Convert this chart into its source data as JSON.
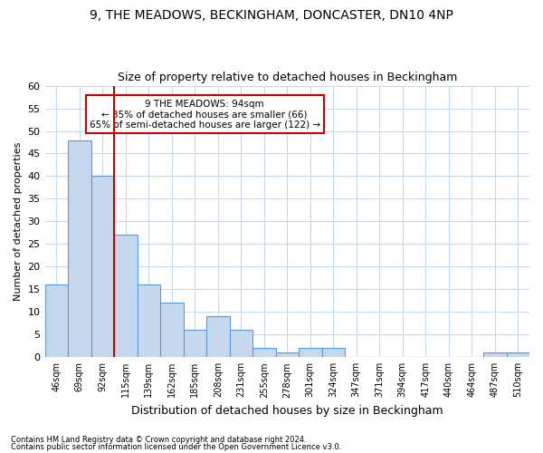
{
  "title1": "9, THE MEADOWS, BECKINGHAM, DONCASTER, DN10 4NP",
  "title2": "Size of property relative to detached houses in Beckingham",
  "xlabel": "Distribution of detached houses by size in Beckingham",
  "ylabel": "Number of detached properties",
  "footnote1": "Contains HM Land Registry data © Crown copyright and database right 2024.",
  "footnote2": "Contains public sector information licensed under the Open Government Licence v3.0.",
  "categories": [
    "46sqm",
    "69sqm",
    "92sqm",
    "115sqm",
    "139sqm",
    "162sqm",
    "185sqm",
    "208sqm",
    "231sqm",
    "255sqm",
    "278sqm",
    "301sqm",
    "324sqm",
    "347sqm",
    "371sqm",
    "394sqm",
    "417sqm",
    "440sqm",
    "464sqm",
    "487sqm",
    "510sqm"
  ],
  "values": [
    16,
    48,
    40,
    27,
    16,
    12,
    6,
    9,
    6,
    2,
    1,
    2,
    2,
    0,
    0,
    0,
    0,
    0,
    0,
    1,
    1
  ],
  "bar_color": "#c5d8ed",
  "bar_edge_color": "#5b9bd5",
  "grid_color": "#c5d8ed",
  "annotation_box_color": "#cc0000",
  "vline_color": "#cc0000",
  "vline_x": 2.5,
  "annotation_text_line1": "9 THE MEADOWS: 94sqm",
  "annotation_text_line2": "← 35% of detached houses are smaller (66)",
  "annotation_text_line3": "65% of semi-detached houses are larger (122) →",
  "ylim": [
    0,
    60
  ],
  "yticks": [
    0,
    5,
    10,
    15,
    20,
    25,
    30,
    35,
    40,
    45,
    50,
    55,
    60
  ],
  "background_color": "#ffffff",
  "title1_fontsize": 10,
  "title2_fontsize": 9,
  "ann_fontsize": 7.5,
  "xlabel_fontsize": 9,
  "ylabel_fontsize": 8
}
